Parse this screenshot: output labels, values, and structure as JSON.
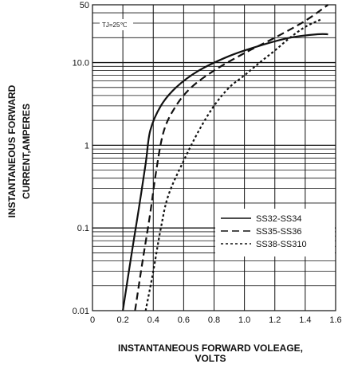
{
  "chart_data": {
    "type": "line",
    "title": "",
    "xlabel_line1": "INSTANTANEOUS FORWARD VOLEAGE,",
    "xlabel_line2": "VOLTS",
    "ylabel_line1": "INSTANTANEOUS FORWARD",
    "ylabel_line2": "CURRENT,AMPERES",
    "annotation": "TJ=25℃",
    "x_scale": "linear",
    "y_scale": "log",
    "xlim": [
      0,
      1.6
    ],
    "ylim": [
      0.01,
      50
    ],
    "x_ticks": [
      "0",
      "0.2",
      "0.4",
      "0.6",
      "0.8",
      "1.0",
      "1.2",
      "1.4",
      "1.6"
    ],
    "y_ticks": [
      "0.01",
      "0.1",
      "1",
      "10.0",
      "50"
    ],
    "grid": true,
    "legend_position": "lower-right",
    "series": [
      {
        "name": "SS32-SS34",
        "style": "solid",
        "color": "#111111",
        "points": [
          [
            0.2,
            0.01
          ],
          [
            0.25,
            0.04
          ],
          [
            0.3,
            0.15
          ],
          [
            0.35,
            0.6
          ],
          [
            0.38,
            1.5
          ],
          [
            0.45,
            3
          ],
          [
            0.55,
            5
          ],
          [
            0.7,
            8
          ],
          [
            0.9,
            12
          ],
          [
            1.1,
            16
          ],
          [
            1.3,
            20
          ],
          [
            1.48,
            22
          ],
          [
            1.55,
            22
          ]
        ]
      },
      {
        "name": "SS35-SS36",
        "style": "dashed",
        "color": "#111111",
        "points": [
          [
            0.28,
            0.01
          ],
          [
            0.33,
            0.04
          ],
          [
            0.38,
            0.15
          ],
          [
            0.42,
            0.5
          ],
          [
            0.47,
            1.5
          ],
          [
            0.55,
            3
          ],
          [
            0.65,
            5
          ],
          [
            0.8,
            8
          ],
          [
            1.0,
            13
          ],
          [
            1.2,
            20
          ],
          [
            1.4,
            32
          ],
          [
            1.55,
            50
          ]
        ]
      },
      {
        "name": "SS38-SS310",
        "style": "dotted",
        "color": "#111111",
        "points": [
          [
            0.35,
            0.01
          ],
          [
            0.4,
            0.03
          ],
          [
            0.45,
            0.1
          ],
          [
            0.5,
            0.25
          ],
          [
            0.6,
            0.65
          ],
          [
            0.7,
            1.5
          ],
          [
            0.8,
            3
          ],
          [
            0.9,
            5
          ],
          [
            1.0,
            7
          ],
          [
            1.1,
            10
          ],
          [
            1.2,
            14
          ],
          [
            1.3,
            20
          ],
          [
            1.4,
            27
          ],
          [
            1.5,
            33
          ]
        ]
      }
    ]
  }
}
